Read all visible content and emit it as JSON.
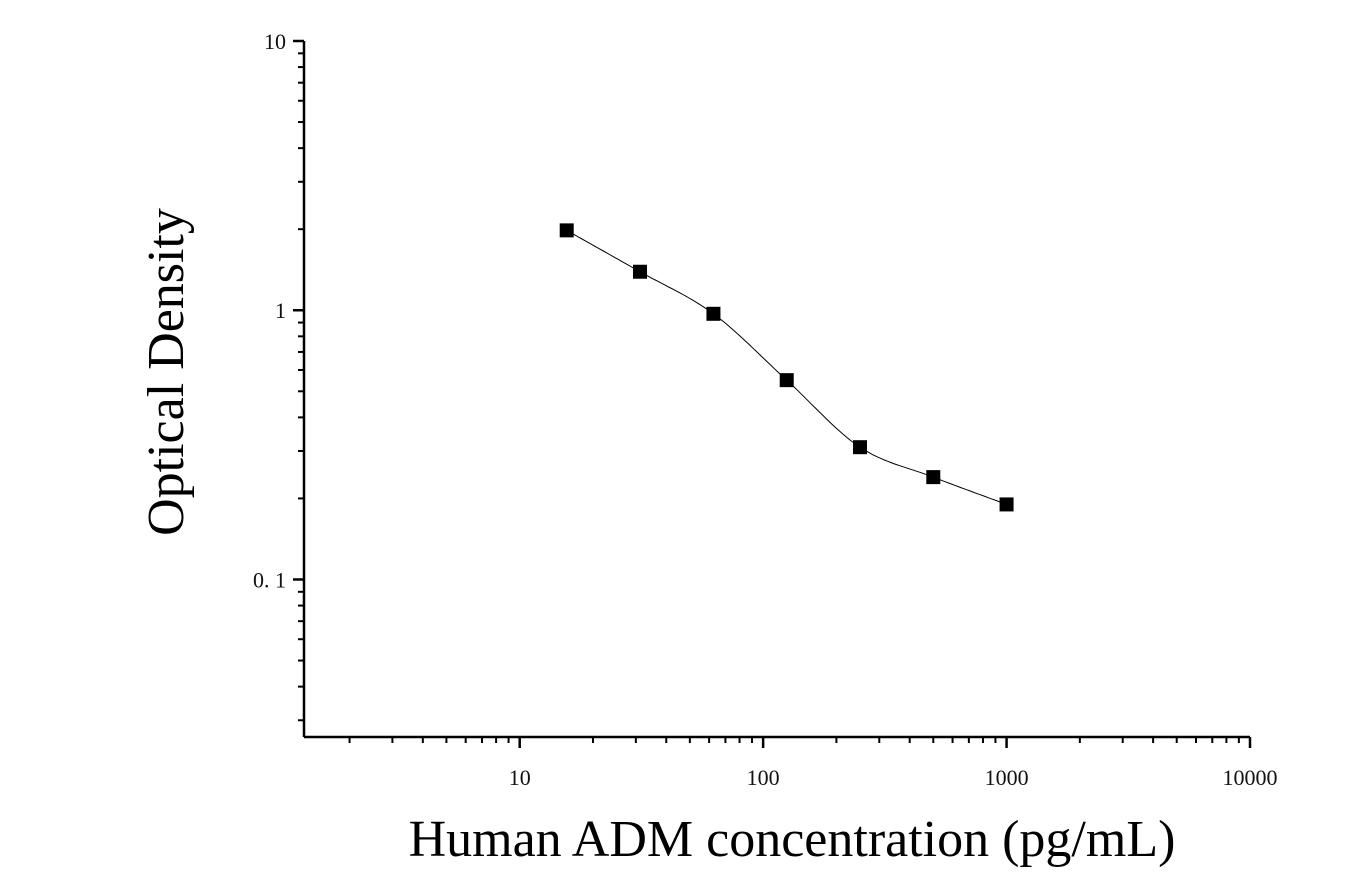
{
  "chart_data": {
    "type": "scatter",
    "title": "",
    "xlabel": "Human ADM concentration (pg/mL)",
    "ylabel": "Optical Density",
    "x_scale": "log",
    "y_scale": "log",
    "xlim": [
      1.3,
      10000
    ],
    "ylim": [
      0.026,
      10
    ],
    "x_ticks": [
      10,
      100,
      1000,
      10000
    ],
    "x_tick_labels": [
      "10",
      "100",
      "1000",
      "10000"
    ],
    "y_ticks": [
      0.1,
      1,
      10
    ],
    "y_tick_labels": [
      "0. 1",
      "1",
      "10"
    ],
    "grid": false,
    "legend": "none",
    "colors": {
      "marker": "#000000",
      "curve": "#000000",
      "axis": "#000000"
    },
    "series": [
      {
        "marker": "square",
        "x": [
          15.6,
          31.2,
          62.5,
          125,
          250,
          500,
          1000
        ],
        "y": [
          1.98,
          1.39,
          0.97,
          0.55,
          0.31,
          0.24,
          0.19
        ]
      }
    ],
    "fit_curve": {
      "type": "4PL",
      "x_range": [
        15.6,
        1000
      ]
    }
  }
}
